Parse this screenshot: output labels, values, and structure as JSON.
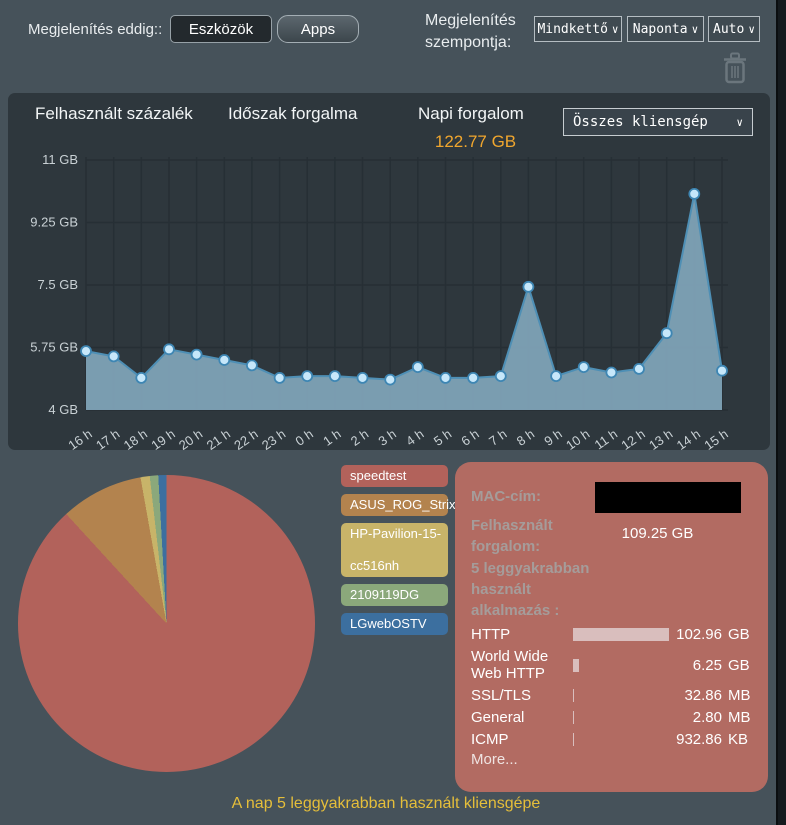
{
  "topbar": {
    "display_label": "Megjelenítés eddig::",
    "devices_button": "Eszközök",
    "apps_button": "Apps",
    "view_label_lines": [
      "Megjelenítés",
      "szempontja:"
    ],
    "dropdowns": [
      {
        "value": "Mindkettő"
      },
      {
        "value": "Naponta"
      },
      {
        "value": "Auto"
      }
    ]
  },
  "traffic_panel": {
    "tabs": [
      {
        "label": "Felhasznált százalék",
        "selected": false
      },
      {
        "label": "Időszak forgalma",
        "selected": false
      },
      {
        "label": "Napi forgalom",
        "selected": true
      }
    ],
    "daily_value": "122.77 GB",
    "client_dropdown": "Összes kliensgép"
  },
  "chart_data": [
    {
      "type": "area",
      "title": "Napi forgalom",
      "x_labels": [
        "16 h",
        "17 h",
        "18 h",
        "19 h",
        "20 h",
        "21 h",
        "22 h",
        "23 h",
        "0 h",
        "1 h",
        "2 h",
        "3 h",
        "4 h",
        "5 h",
        "6 h",
        "7 h",
        "8 h",
        "9 h",
        "10 h",
        "11 h",
        "12 h",
        "13 h",
        "14 h",
        "15 h"
      ],
      "values_gb": [
        5.65,
        5.5,
        4.9,
        5.7,
        5.55,
        5.4,
        5.25,
        4.9,
        4.95,
        4.95,
        4.9,
        4.85,
        5.2,
        4.9,
        4.9,
        4.95,
        7.45,
        4.95,
        5.2,
        5.05,
        5.15,
        6.15,
        10.05,
        5.1
      ],
      "y_ticks": [
        "11 GB",
        "9.25 GB",
        "7.5 GB",
        "5.75 GB",
        "4 GB"
      ],
      "y_tick_values": [
        11,
        9.25,
        7.5,
        5.75,
        4
      ],
      "ylim": [
        4,
        11
      ],
      "grid": true,
      "area_color": "#7EA2B6",
      "line_color": "#4E8FB5",
      "dot_fill": "#C6E7FA",
      "dot_stroke": "#3E86B3",
      "grid_color": "#262F35"
    },
    {
      "type": "pie",
      "title": "A nap 5 leggyakrabban használt kliensgépe",
      "slices": [
        {
          "label": "speedtest",
          "label_lines": [
            "speedtest"
          ],
          "pct": 88.2,
          "color": "#B2625B"
        },
        {
          "label": "ASUS_ROG_Strix",
          "label_lines": [
            "ASUS_ROG_Strix"
          ],
          "pct": 9.0,
          "color": "#B3834E"
        },
        {
          "label": "HP-Pavilion-15-cc516nh",
          "label_lines": [
            "HP-Pavilion-15-",
            "cc516nh"
          ],
          "pct": 1.0,
          "color": "#C8B469"
        },
        {
          "label": "2109119DG",
          "label_lines": [
            "2109119DG"
          ],
          "pct": 0.9,
          "color": "#8BA87B"
        },
        {
          "label": "LGwebOSTV",
          "label_lines": [
            "LGwebOSTV"
          ],
          "pct": 0.9,
          "color": "#3C6F9F"
        }
      ],
      "legend_position": "right",
      "start_angle": "top-clockwise"
    }
  ],
  "client_panel": {
    "mac_label": "MAC-cím:",
    "mac_value_redacted": true,
    "used_label_lines": [
      "Felhasznált",
      "forgalom:"
    ],
    "used_value": "109.25 GB",
    "top_apps_label_lines": [
      "5 leggyakrabban",
      "használt",
      "alkalmazás :"
    ],
    "apps": [
      {
        "name": "HTTP",
        "value": "102.96",
        "unit": "GB"
      },
      {
        "name": "World Wide Web HTTP",
        "value": "6.25",
        "unit": "GB"
      },
      {
        "name": "SSL/TLS",
        "value": "32.86",
        "unit": "MB"
      },
      {
        "name": "General",
        "value": "2.80",
        "unit": "MB"
      },
      {
        "name": "ICMP",
        "value": "932.86",
        "unit": "KB"
      }
    ],
    "more_label": "More..."
  },
  "colors": {
    "page_bg": "#46525A",
    "panel_bg": "#2E373D",
    "accent_orange": "#F0A62E",
    "caption_yellow": "#E5BE3A",
    "client_panel_bg": "#B26B62",
    "app_bar": "#D9BEBD"
  }
}
